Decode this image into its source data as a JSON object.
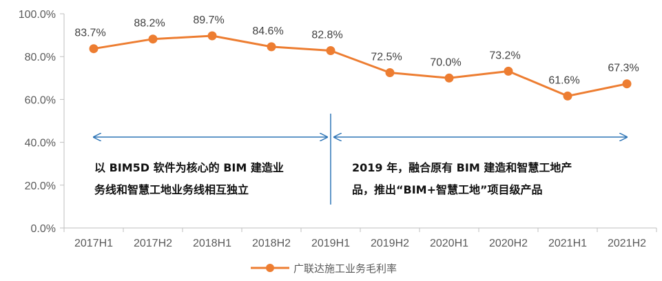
{
  "chart_data": {
    "type": "line",
    "categories": [
      "2017H1",
      "2017H2",
      "2018H1",
      "2018H2",
      "2019H1",
      "2019H2",
      "2020H1",
      "2020H2",
      "2021H1",
      "2021H2"
    ],
    "series": [
      {
        "name": "广联达施工业务毛利率",
        "values": [
          83.7,
          88.2,
          89.7,
          84.6,
          82.8,
          72.5,
          70.0,
          73.2,
          61.6,
          67.3
        ],
        "labels": [
          "83.7%",
          "88.2%",
          "89.7%",
          "84.6%",
          "82.8%",
          "72.5%",
          "70.0%",
          "73.2%",
          "61.6%",
          "67.3%"
        ],
        "color": "#ED7D31"
      }
    ],
    "ylim": [
      0,
      100
    ],
    "y_ticks": [
      0,
      20,
      40,
      60,
      80,
      100
    ],
    "y_tick_labels": [
      "0.0%",
      "20.0%",
      "40.0%",
      "60.0%",
      "80.0%",
      "100.0%"
    ],
    "grid": false,
    "legend_position": "bottom",
    "annotations": {
      "left": {
        "lines": [
          "以 BIM5D 软件为核心的 BIM 建造业",
          "务线和智慧工地业务线相互独立"
        ],
        "range": [
          "2017H1",
          "2019H1"
        ]
      },
      "right": {
        "lines": [
          "2019 年，融合原有 BIM 建造和智慧工地产",
          "品，推出“BIM+智慧工地”项目级产品"
        ],
        "range": [
          "2019H1",
          "2021H2"
        ]
      },
      "divider_at": "2019H1",
      "arrow_level": 45,
      "arrow_color": "#2E75B6"
    },
    "axis_color": "#BFBFBF"
  }
}
